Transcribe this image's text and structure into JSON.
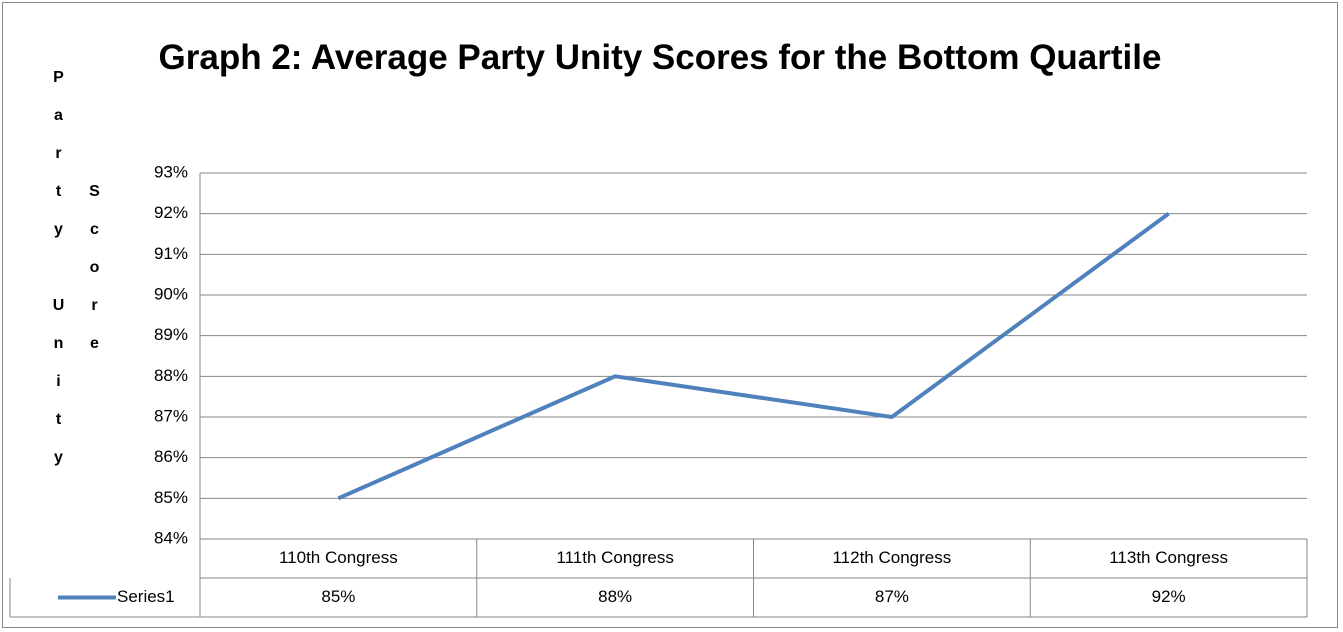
{
  "chart_data": {
    "type": "line",
    "title": "Graph 2: Average Party Unity Scores for the Bottom Quartile",
    "y_label": "Party Unity Score",
    "categories": [
      "110th Congress",
      "111th Congress",
      "112th Congress",
      "113th Congress"
    ],
    "series": [
      {
        "name": "Series1",
        "color": "#4f81bd",
        "values": [
          85,
          88,
          87,
          92
        ],
        "value_labels": [
          "85%",
          "88%",
          "87%",
          "92%"
        ]
      }
    ],
    "ylim": [
      84,
      93
    ],
    "yticks": [
      {
        "value": 84,
        "label": "84%"
      },
      {
        "value": 85,
        "label": "85%"
      },
      {
        "value": 86,
        "label": "86%"
      },
      {
        "value": 87,
        "label": "87%"
      },
      {
        "value": 88,
        "label": "88%"
      },
      {
        "value": 89,
        "label": "89%"
      },
      {
        "value": 90,
        "label": "90%"
      },
      {
        "value": 91,
        "label": "91%"
      },
      {
        "value": 92,
        "label": "92%"
      },
      {
        "value": 93,
        "label": "93%"
      }
    ],
    "grid": true,
    "data_table": true
  }
}
